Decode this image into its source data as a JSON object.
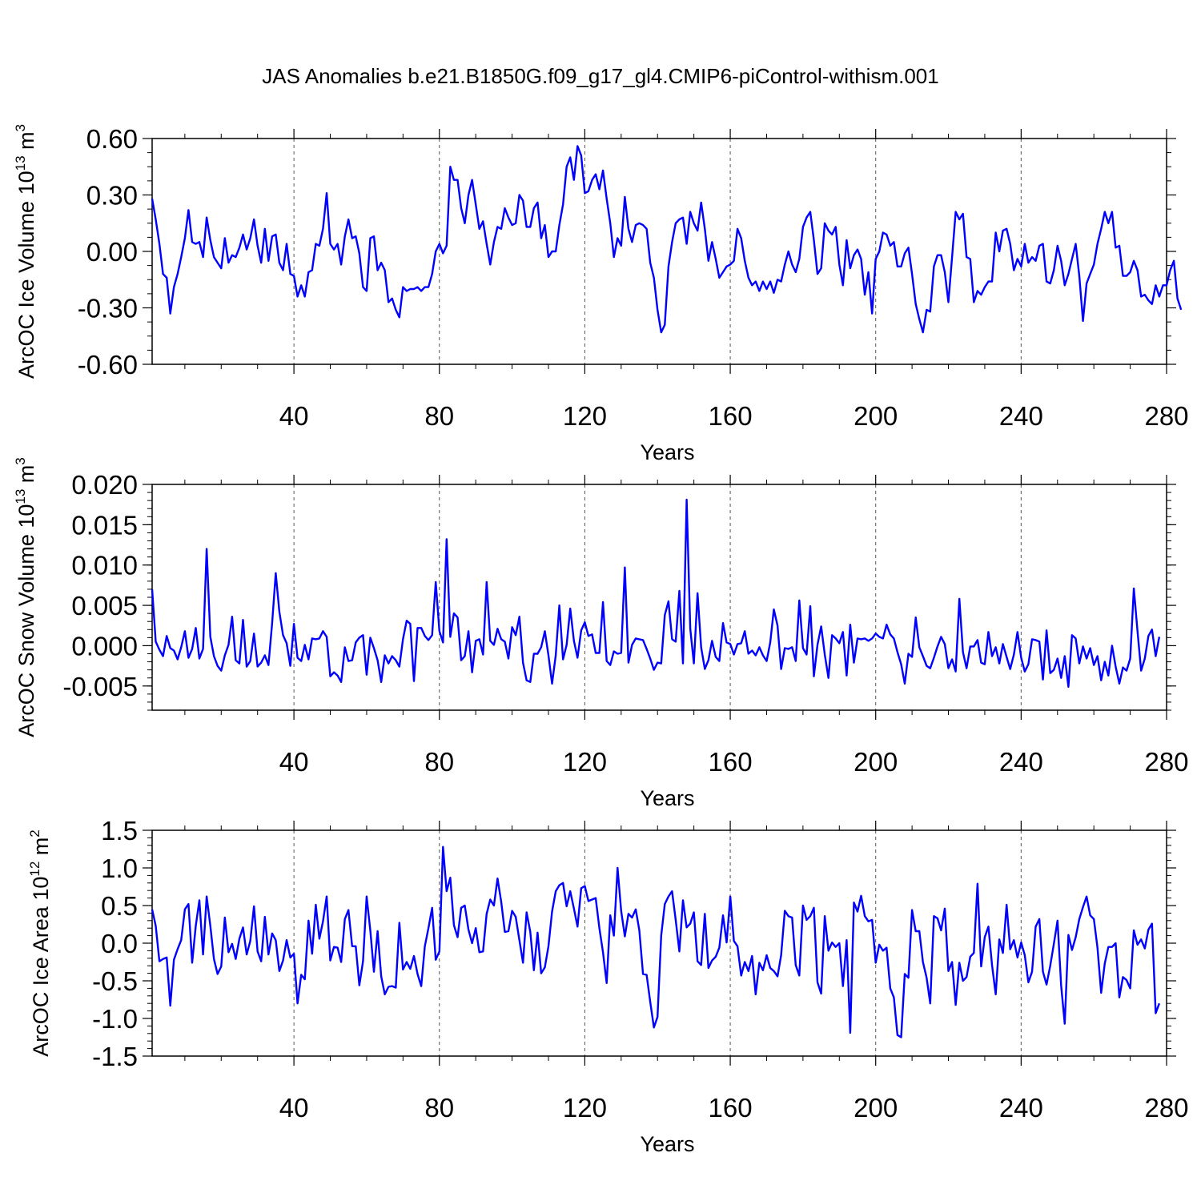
{
  "figure": {
    "title": "JAS Anomalies b.e21.B1850G.f09_g17_gl4.CMIP6-piControl-withism.001"
  },
  "chart_data": [
    {
      "type": "line",
      "ylabel": "ArcOC Ice Volume 10",
      "ylabel_exp": "13",
      "ylabel_unit": " m",
      "ylabel_unit_exp": "3",
      "xlabel": "Years",
      "xlim": [
        1,
        280
      ],
      "ylim": [
        -0.6,
        0.6
      ],
      "yticks": [
        -0.6,
        -0.3,
        0.0,
        0.3,
        0.6
      ],
      "ytick_labels": [
        "-0.60",
        "-0.30",
        "0.00",
        "0.30",
        "0.60"
      ],
      "yminor_step": 0.075,
      "xticks": [
        40,
        80,
        120,
        160,
        200,
        240,
        280
      ],
      "xtick_labels": [
        "40",
        "80",
        "120",
        "160",
        "200",
        "240",
        "280"
      ],
      "grid": "dashed vertical at major x ticks",
      "color": "#0000ff",
      "series_name": "ArcOC Ice Volume",
      "values": [
        0.28,
        0.17,
        0.04,
        -0.12,
        -0.14,
        -0.33,
        -0.19,
        -0.12,
        -0.03,
        0.07,
        0.22,
        0.05,
        0.04,
        0.05,
        -0.03,
        0.18,
        0.06,
        -0.03,
        -0.06,
        -0.09,
        0.07,
        -0.06,
        -0.02,
        -0.03,
        0.02,
        0.09,
        0.01,
        0.07,
        0.17,
        0.03,
        -0.06,
        0.12,
        -0.05,
        0.08,
        0.09,
        -0.06,
        -0.1,
        0.04,
        -0.12,
        -0.13,
        -0.24,
        -0.18,
        -0.24,
        -0.11,
        -0.1,
        0.04,
        0.03,
        0.12,
        0.31,
        0.04,
        0.01,
        0.04,
        -0.07,
        0.08,
        0.17,
        0.07,
        0.08,
        -0.01,
        -0.19,
        -0.21,
        0.07,
        0.08,
        -0.1,
        -0.06,
        -0.1,
        -0.27,
        -0.25,
        -0.31,
        -0.35,
        -0.19,
        -0.21,
        -0.2,
        -0.2,
        -0.19,
        -0.21,
        -0.19,
        -0.19,
        -0.12,
        0.0,
        0.04,
        -0.01,
        0.03,
        0.45,
        0.38,
        0.38,
        0.23,
        0.15,
        0.3,
        0.38,
        0.25,
        0.12,
        0.16,
        0.04,
        -0.07,
        0.05,
        0.13,
        0.12,
        0.23,
        0.18,
        0.14,
        0.15,
        0.3,
        0.27,
        0.13,
        0.13,
        0.23,
        0.26,
        0.07,
        0.14,
        -0.03,
        0.0,
        0.0,
        0.14,
        0.25,
        0.45,
        0.5,
        0.38,
        0.56,
        0.51,
        0.31,
        0.32,
        0.38,
        0.41,
        0.33,
        0.43,
        0.28,
        0.15,
        -0.03,
        0.07,
        0.03,
        0.29,
        0.12,
        0.05,
        0.14,
        0.15,
        0.14,
        0.12,
        -0.06,
        -0.14,
        -0.31,
        -0.43,
        -0.39,
        -0.08,
        0.05,
        0.15,
        0.17,
        0.18,
        0.04,
        0.21,
        0.15,
        0.11,
        0.26,
        0.12,
        -0.05,
        0.05,
        -0.04,
        -0.14,
        -0.11,
        -0.08,
        -0.07,
        -0.05,
        0.12,
        0.07,
        -0.05,
        -0.14,
        -0.18,
        -0.16,
        -0.21,
        -0.16,
        -0.2,
        -0.16,
        -0.22,
        -0.15,
        -0.16,
        -0.07,
        0.0,
        -0.07,
        -0.11,
        -0.04,
        0.13,
        0.18,
        0.21,
        0.06,
        -0.12,
        -0.09,
        0.15,
        0.11,
        0.09,
        0.13,
        -0.07,
        -0.18,
        0.06,
        -0.09,
        -0.02,
        0.01,
        -0.04,
        -0.23,
        -0.11,
        -0.33,
        -0.04,
        0.0,
        0.1,
        0.09,
        0.03,
        0.05,
        -0.08,
        -0.08,
        -0.01,
        0.02,
        -0.12,
        -0.28,
        -0.36,
        -0.43,
        -0.31,
        -0.32,
        -0.08,
        -0.02,
        -0.02,
        -0.11,
        -0.27,
        -0.03,
        0.21,
        0.17,
        0.2,
        -0.03,
        -0.04,
        -0.27,
        -0.21,
        -0.23,
        -0.19,
        -0.16,
        -0.16,
        0.1,
        0.0,
        0.11,
        0.12,
        0.04,
        -0.1,
        -0.04,
        -0.08,
        0.04,
        -0.06,
        -0.03,
        -0.05,
        0.03,
        0.04,
        -0.16,
        -0.17,
        -0.1,
        0.03,
        -0.05,
        -0.18,
        -0.12,
        -0.04,
        0.04,
        -0.13,
        -0.37,
        -0.17,
        -0.12,
        -0.07,
        0.04,
        0.12,
        0.21,
        0.15,
        0.21,
        0.02,
        0.03,
        -0.13,
        -0.13,
        -0.11,
        -0.05,
        -0.1,
        -0.24,
        -0.23,
        -0.26,
        -0.28,
        -0.18,
        -0.24,
        -0.18,
        -0.18,
        -0.1,
        -0.05,
        -0.25,
        -0.31
      ]
    },
    {
      "type": "line",
      "ylabel": "ArcOC Snow Volume 10",
      "ylabel_exp": "13",
      "ylabel_unit": " m",
      "ylabel_unit_exp": "3",
      "xlabel": "Years",
      "xlim": [
        1,
        280
      ],
      "ylim": [
        -0.008,
        0.02
      ],
      "yticks": [
        -0.005,
        0.0,
        0.005,
        0.01,
        0.015,
        0.02
      ],
      "ytick_labels": [
        "-0.005",
        "0.000",
        "0.005",
        "0.010",
        "0.015",
        "0.020"
      ],
      "yminor_step": 0.001,
      "xticks": [
        40,
        80,
        120,
        160,
        200,
        240,
        280
      ],
      "xtick_labels": [
        "40",
        "80",
        "120",
        "160",
        "200",
        "240",
        "280"
      ],
      "grid": "dashed vertical at major x ticks",
      "color": "#0000ff",
      "series_name": "ArcOC Snow Volume",
      "values": [
        0.007,
        0.0005,
        -0.0005,
        -0.0013,
        0.0012,
        -0.0003,
        -0.0006,
        -0.0017,
        -0.0002,
        0.0018,
        -0.0015,
        -0.0004,
        0.0022,
        -0.0016,
        -0.0004,
        0.012,
        0.0011,
        -0.0013,
        -0.0025,
        -0.0031,
        -0.0012,
        0.0001,
        0.0036,
        -0.0018,
        -0.0022,
        0.0032,
        -0.0026,
        -0.0019,
        0.0015,
        -0.0026,
        -0.0021,
        -0.0012,
        -0.0024,
        0.0028,
        0.009,
        0.0042,
        0.0013,
        0.0003,
        -0.0025,
        0.0027,
        -0.0015,
        -0.0019,
        0.0001,
        -0.0017,
        0.0009,
        0.0008,
        0.0009,
        0.0018,
        0.0011,
        -0.0038,
        -0.0033,
        -0.0037,
        -0.0045,
        -0.0002,
        -0.0019,
        -0.0018,
        0.0004,
        0.001,
        0.0013,
        -0.0036,
        0.001,
        -0.0003,
        -0.0018,
        -0.0045,
        -0.0012,
        -0.0022,
        -0.0013,
        -0.0018,
        -0.0026,
        0.0008,
        0.0031,
        0.0027,
        -0.0044,
        0.0022,
        0.0022,
        0.0012,
        0.0007,
        0.0013,
        0.0079,
        0.0018,
        0.0004,
        0.0132,
        0.0011,
        0.004,
        0.0035,
        -0.0018,
        -0.0013,
        0.0018,
        -0.0033,
        0.0006,
        0.0008,
        -0.0011,
        0.0079,
        0.0006,
        0.0001,
        0.0021,
        0.0008,
        0.0005,
        -0.0016,
        0.0023,
        0.0013,
        0.0036,
        -0.0021,
        -0.0043,
        -0.0045,
        -0.001,
        -0.001,
        -0.0002,
        0.0018,
        -0.0012,
        -0.0047,
        -0.0012,
        0.005,
        -0.0017,
        0.0001,
        0.0046,
        0.0006,
        -0.0015,
        0.0019,
        0.0029,
        0.0012,
        0.0014,
        -0.0009,
        -0.0009,
        0.0054,
        -0.0019,
        -0.0024,
        -0.0007,
        -0.001,
        -0.0009,
        0.0097,
        -0.0021,
        0.0001,
        0.0009,
        0.0008,
        0.0007,
        -0.0004,
        -0.0016,
        -0.003,
        -0.0021,
        -0.0022,
        0.0038,
        0.0055,
        0.0008,
        0.0005,
        0.0068,
        -0.0022,
        0.0181,
        0.0021,
        -0.0022,
        0.0065,
        -0.0002,
        -0.0029,
        -0.0018,
        0.0006,
        -0.0014,
        -0.0019,
        0.0028,
        0.0004,
        0.0002,
        -0.0011,
        0.0002,
        0.0003,
        0.0018,
        -0.001,
        -0.0006,
        -0.0012,
        -0.0002,
        -0.0012,
        -0.0019,
        0.0004,
        0.0045,
        0.0025,
        -0.0029,
        -0.0003,
        -0.0004,
        -0.0002,
        -0.0019,
        0.0056,
        -0.0003,
        -0.0011,
        0.0049,
        -0.0038,
        0.0001,
        0.0024,
        -0.0011,
        -0.004,
        0.0013,
        0.0009,
        0.0003,
        0.0017,
        -0.0037,
        0.0026,
        -0.0021,
        0.0009,
        0.0008,
        0.0009,
        0.0006,
        0.0009,
        0.0015,
        0.0011,
        0.0009,
        0.0026,
        0.0014,
        0.0009,
        -0.0008,
        -0.0023,
        -0.0047,
        -0.001,
        -0.0014,
        0.0035,
        -0.0002,
        -0.0013,
        -0.0025,
        -0.0028,
        -0.0015,
        -0.0001,
        0.0011,
        0.0002,
        -0.0028,
        -0.0017,
        -0.0032,
        0.0058,
        -0.0008,
        -0.0028,
        -0.0001,
        -0.0001,
        0.0007,
        -0.0021,
        -0.0023,
        0.0017,
        -0.0013,
        -0.0002,
        -0.0022,
        0.0002,
        -0.0014,
        -0.0029,
        -0.0011,
        0.0017,
        -0.0015,
        -0.0032,
        -0.0023,
        0.0008,
        0.0007,
        0.0005,
        -0.0042,
        0.0019,
        -0.0034,
        -0.003,
        -0.0016,
        -0.004,
        -0.0013,
        -0.0051,
        0.0013,
        0.0009,
        -0.0022,
        -0.0001,
        -0.0016,
        -0.0003,
        -0.0024,
        -0.0013,
        -0.0043,
        -0.002,
        -0.0037,
        0.0,
        -0.0026,
        -0.0047,
        -0.0027,
        -0.0031,
        -0.0016,
        0.0071,
        0.0018,
        -0.0031,
        -0.0016,
        0.0012,
        0.002,
        -0.0013,
        0.0011
      ]
    },
    {
      "type": "line",
      "ylabel": "ArcOC Ice Area 10",
      "ylabel_exp": "12",
      "ylabel_unit": " m",
      "ylabel_unit_exp": "2",
      "xlabel": "Years",
      "xlim": [
        1,
        280
      ],
      "ylim": [
        -1.5,
        1.5
      ],
      "yticks": [
        -1.5,
        -1.0,
        -0.5,
        0.0,
        0.5,
        1.0,
        1.5
      ],
      "ytick_labels": [
        "-1.5",
        "-1.0",
        "-0.5",
        "0.0",
        "0.5",
        "1.0",
        "1.5"
      ],
      "yminor_step": 0.1,
      "xticks": [
        40,
        80,
        120,
        160,
        200,
        240,
        280
      ],
      "xtick_labels": [
        "40",
        "80",
        "120",
        "160",
        "200",
        "240",
        "280"
      ],
      "grid": "dashed vertical at major x ticks",
      "color": "#0000ff",
      "series_name": "ArcOC Ice Area",
      "values": [
        0.45,
        0.23,
        -0.24,
        -0.21,
        -0.19,
        -0.83,
        -0.22,
        -0.08,
        0.04,
        0.45,
        0.52,
        -0.26,
        0.23,
        0.57,
        -0.15,
        0.62,
        0.23,
        -0.21,
        -0.41,
        -0.31,
        0.34,
        -0.12,
        -0.01,
        -0.21,
        0.06,
        0.21,
        -0.15,
        0.03,
        0.49,
        -0.11,
        -0.24,
        0.35,
        -0.15,
        0.13,
        0.04,
        -0.37,
        -0.23,
        0.04,
        -0.19,
        -0.14,
        -0.8,
        -0.42,
        -0.48,
        0.3,
        -0.14,
        0.51,
        0.06,
        0.29,
        0.62,
        -0.23,
        -0.05,
        -0.06,
        -0.25,
        0.32,
        0.44,
        -0.04,
        -0.04,
        -0.56,
        -0.24,
        0.62,
        0.17,
        -0.38,
        0.16,
        -0.44,
        -0.68,
        -0.58,
        -0.57,
        -0.59,
        0.27,
        -0.35,
        -0.25,
        -0.34,
        -0.17,
        -0.41,
        -0.57,
        -0.04,
        0.2,
        0.47,
        -0.22,
        -0.11,
        1.28,
        0.69,
        0.87,
        0.24,
        0.08,
        0.47,
        0.5,
        0.18,
        0.0,
        0.2,
        -0.12,
        -0.11,
        0.39,
        0.58,
        0.5,
        0.86,
        0.55,
        0.15,
        0.16,
        0.43,
        0.35,
        0.04,
        -0.26,
        0.41,
        0.15,
        -0.36,
        0.14,
        -0.4,
        -0.32,
        -0.04,
        0.42,
        0.69,
        0.77,
        0.8,
        0.49,
        0.69,
        0.46,
        0.22,
        0.73,
        0.76,
        0.56,
        0.58,
        0.6,
        0.2,
        -0.12,
        -0.53,
        0.37,
        0.1,
        1.0,
        0.43,
        0.09,
        0.39,
        0.34,
        0.45,
        0.17,
        -0.41,
        -0.42,
        -0.78,
        -1.12,
        -0.98,
        0.1,
        0.52,
        0.62,
        0.69,
        0.31,
        -0.11,
        0.57,
        0.21,
        0.26,
        0.41,
        -0.24,
        -0.29,
        0.39,
        -0.33,
        -0.23,
        -0.18,
        -0.06,
        0.37,
        0.01,
        0.62,
        0.03,
        -0.04,
        -0.43,
        -0.25,
        -0.37,
        -0.17,
        -0.68,
        -0.26,
        -0.36,
        -0.16,
        -0.33,
        -0.37,
        -0.44,
        -0.16,
        0.43,
        0.36,
        0.34,
        -0.29,
        -0.43,
        0.5,
        0.31,
        0.36,
        0.47,
        -0.52,
        -0.67,
        0.36,
        -0.1,
        0.01,
        -0.05,
        0.0,
        -0.57,
        0.04,
        -1.19,
        0.54,
        0.42,
        0.63,
        0.36,
        0.29,
        0.31,
        -0.26,
        -0.02,
        -0.1,
        -0.06,
        -0.6,
        -0.72,
        -1.22,
        -1.25,
        -0.41,
        -0.46,
        0.44,
        0.16,
        0.16,
        -0.25,
        -0.46,
        -0.8,
        0.36,
        0.33,
        0.17,
        0.46,
        -0.37,
        -0.25,
        -0.82,
        -0.26,
        -0.5,
        -0.45,
        -0.18,
        -0.13,
        0.79,
        -0.31,
        0.08,
        0.22,
        -0.29,
        -0.68,
        0.05,
        -0.13,
        0.51,
        -0.08,
        0.04,
        -0.19,
        0.01,
        -0.16,
        -0.52,
        -0.38,
        0.22,
        0.32,
        -0.38,
        -0.55,
        -0.3,
        -0.01,
        0.3,
        -0.56,
        -1.07,
        0.11,
        -0.09,
        0.08,
        0.32,
        0.48,
        0.62,
        0.37,
        0.32,
        -0.06,
        -0.66,
        -0.27,
        -0.05,
        -0.05,
        0.0,
        -0.72,
        -0.45,
        -0.49,
        -0.6,
        0.17,
        -0.02,
        0.05,
        -0.07,
        0.18,
        0.26,
        -0.93,
        -0.8
      ]
    }
  ]
}
